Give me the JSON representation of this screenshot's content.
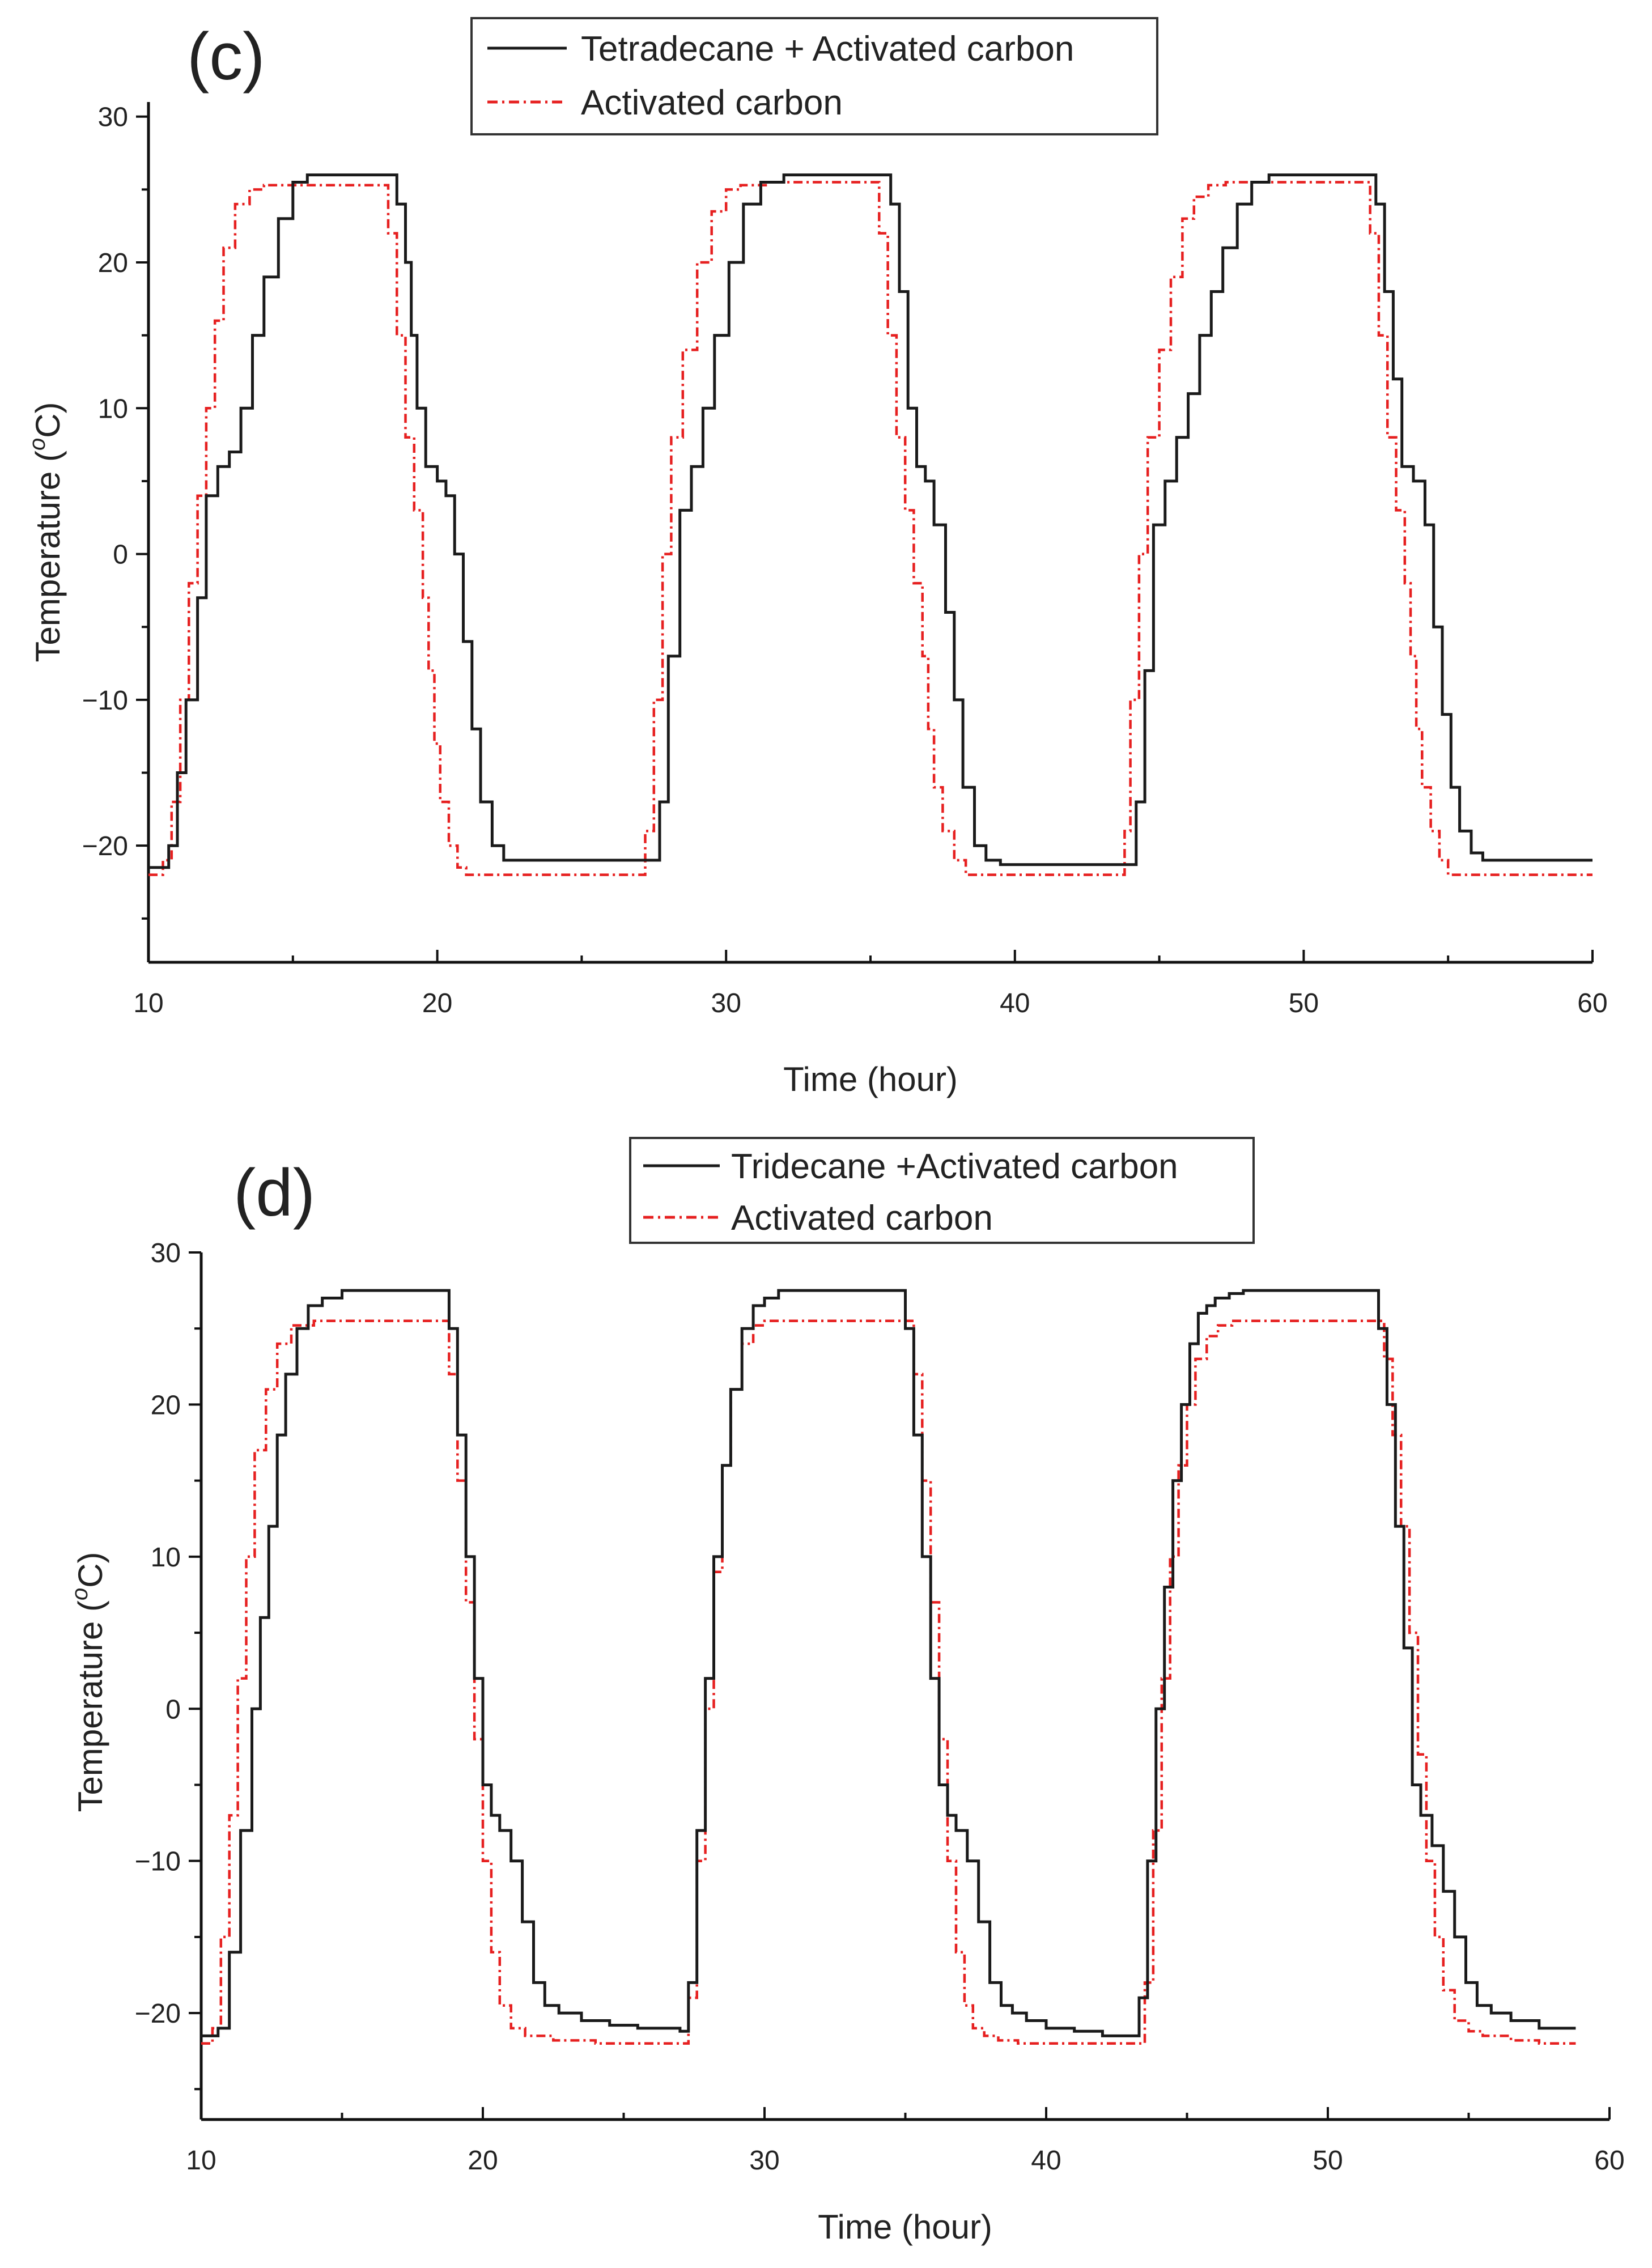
{
  "chart_data": [
    {
      "type": "line",
      "panel_label": "(c)",
      "xlabel": "Time (hour)",
      "ylabel_prefix": "Temperature (",
      "ylabel_sup": "o",
      "ylabel_suffix": "C)",
      "xlim": [
        10,
        60
      ],
      "ylim": [
        -28,
        31
      ],
      "xticks": [
        10,
        20,
        30,
        40,
        50,
        60
      ],
      "yticks": [
        -20,
        -10,
        0,
        10,
        20,
        30
      ],
      "xtick_labels": [
        "10",
        "20",
        "30",
        "40",
        "50",
        "60"
      ],
      "ytick_labels": [
        "−20",
        "−10",
        "0",
        "10",
        "20",
        "30"
      ],
      "legend": {
        "position": "top-center",
        "entries": [
          "Tetradecane + Activated carbon",
          "Activated carbon"
        ]
      },
      "series": [
        {
          "name": "Tetradecane + Activated carbon",
          "color": "#1a1a1a",
          "style": "solid",
          "x": [
            10.0,
            10.7,
            11.0,
            11.3,
            11.7,
            12.0,
            12.4,
            12.8,
            13.2,
            13.6,
            14.0,
            14.5,
            15.0,
            15.5,
            16.5,
            17.5,
            18.3,
            18.6,
            18.9,
            19.1,
            19.3,
            19.6,
            20.0,
            20.3,
            20.6,
            20.9,
            21.2,
            21.5,
            21.9,
            22.3,
            23.0,
            24.0,
            25.0,
            26.0,
            27.0,
            27.4,
            27.7,
            28.0,
            28.4,
            28.8,
            29.2,
            29.6,
            30.1,
            30.6,
            31.2,
            32.0,
            33.0,
            34.0,
            35.4,
            35.7,
            36.0,
            36.3,
            36.6,
            36.9,
            37.2,
            37.6,
            37.9,
            38.2,
            38.6,
            39.0,
            39.5,
            40.0,
            41.0,
            42.0,
            43.0,
            43.8,
            44.2,
            44.5,
            44.8,
            45.2,
            45.6,
            46.0,
            46.4,
            46.8,
            47.2,
            47.7,
            48.2,
            48.8,
            49.5,
            50.5,
            51.5,
            52.2,
            52.5,
            52.8,
            53.1,
            53.4,
            53.8,
            54.2,
            54.5,
            54.8,
            55.1,
            55.4,
            55.8,
            56.2,
            56.8,
            57.5,
            58.5,
            60.0
          ],
          "y": [
            -21.5,
            -20,
            -15,
            -10,
            -3,
            4,
            6,
            7,
            10,
            15,
            19,
            23,
            25.5,
            26,
            26,
            26,
            26,
            24,
            20,
            15,
            10,
            6,
            5,
            4,
            0,
            -6,
            -12,
            -17,
            -20,
            -21,
            -21,
            -21,
            -21,
            -21,
            -21,
            -21,
            -17,
            -7,
            3,
            6,
            10,
            15,
            20,
            24,
            25.5,
            26,
            26,
            26,
            26,
            24,
            18,
            10,
            6,
            5,
            2,
            -4,
            -10,
            -16,
            -20,
            -21,
            -21.3,
            -21.3,
            -21.3,
            -21.3,
            -21.3,
            -21.3,
            -17,
            -8,
            2,
            5,
            8,
            11,
            15,
            18,
            21,
            24,
            25.5,
            26,
            26,
            26,
            26,
            26,
            24,
            18,
            12,
            6,
            5,
            2,
            -5,
            -11,
            -16,
            -19,
            -20.5,
            -21,
            -21,
            -21,
            -21,
            -21
          ]
        },
        {
          "name": "Activated carbon",
          "color": "#e62020",
          "style": "dashdot",
          "x": [
            10.0,
            10.5,
            10.8,
            11.1,
            11.4,
            11.7,
            12.0,
            12.3,
            12.6,
            13.0,
            13.5,
            14.0,
            15.0,
            16.5,
            18.0,
            18.3,
            18.6,
            18.9,
            19.2,
            19.5,
            19.7,
            19.9,
            20.1,
            20.4,
            20.7,
            21.0,
            21.4,
            22.0,
            23.0,
            25.0,
            27.0,
            27.2,
            27.5,
            27.8,
            28.1,
            28.5,
            29.0,
            29.5,
            30.0,
            30.5,
            31.5,
            33.0,
            35.0,
            35.3,
            35.6,
            35.9,
            36.2,
            36.5,
            36.8,
            37.0,
            37.2,
            37.5,
            37.9,
            38.3,
            38.8,
            39.5,
            41.0,
            42.5,
            43.6,
            43.8,
            44.0,
            44.3,
            44.6,
            45.0,
            45.4,
            45.8,
            46.2,
            46.7,
            47.3,
            48.0,
            49.0,
            50.5,
            52.0,
            52.3,
            52.6,
            52.9,
            53.2,
            53.5,
            53.7,
            53.9,
            54.1,
            54.4,
            54.7,
            55.0,
            55.4,
            55.9,
            56.5,
            57.5,
            58.5,
            60.0
          ],
          "y": [
            -22,
            -21,
            -17,
            -10,
            -2,
            4,
            10,
            16,
            21,
            24,
            25,
            25.3,
            25.3,
            25.3,
            25.3,
            22,
            15,
            8,
            3,
            -3,
            -8,
            -13,
            -17,
            -20,
            -21.5,
            -22,
            -22,
            -22,
            -22,
            -22,
            -22,
            -19,
            -10,
            0,
            8,
            14,
            20,
            23.5,
            25,
            25.3,
            25.5,
            25.5,
            25.5,
            22,
            15,
            8,
            3,
            -2,
            -7,
            -12,
            -16,
            -19,
            -21,
            -22,
            -22,
            -22,
            -22,
            -22,
            -22,
            -19,
            -10,
            0,
            8,
            14,
            19,
            23,
            24.5,
            25.3,
            25.5,
            25.5,
            25.5,
            25.5,
            25.5,
            22,
            15,
            8,
            3,
            -2,
            -7,
            -12,
            -16,
            -19,
            -21,
            -22,
            -22,
            -22,
            -22,
            -22,
            -22,
            -22
          ]
        }
      ]
    },
    {
      "type": "line",
      "panel_label": "(d)",
      "xlabel": "Time (hour)",
      "ylabel_prefix": "Temperature (",
      "ylabel_sup": "o",
      "ylabel_suffix": "C)",
      "xlim": [
        10,
        60
      ],
      "ylim": [
        -27,
        30
      ],
      "xticks": [
        10,
        20,
        30,
        40,
        50,
        60
      ],
      "yticks": [
        -20,
        -10,
        0,
        10,
        20,
        30
      ],
      "xtick_labels": [
        "10",
        "20",
        "30",
        "40",
        "50",
        "60"
      ],
      "ytick_labels": [
        "−20",
        "−10",
        "0",
        "10",
        "20",
        "30"
      ],
      "legend": {
        "position": "top-center",
        "entries": [
          "Tridecane +Activated carbon",
          "Activated carbon"
        ]
      },
      "series": [
        {
          "name": "Tridecane +Activated carbon",
          "color": "#1a1a1a",
          "style": "solid",
          "x": [
            10.0,
            10.6,
            11.0,
            11.4,
            11.8,
            12.1,
            12.4,
            12.7,
            13.0,
            13.4,
            13.8,
            14.3,
            15.0,
            16.0,
            17.5,
            18.5,
            18.8,
            19.1,
            19.4,
            19.7,
            20.0,
            20.3,
            20.6,
            21.0,
            21.4,
            21.8,
            22.2,
            22.7,
            23.5,
            24.5,
            25.5,
            27.0,
            27.3,
            27.6,
            27.9,
            28.2,
            28.5,
            28.8,
            29.2,
            29.6,
            30.0,
            30.5,
            31.2,
            32.0,
            33.5,
            35.0,
            35.3,
            35.6,
            35.9,
            36.2,
            36.5,
            36.8,
            37.2,
            37.6,
            38.0,
            38.4,
            38.8,
            39.3,
            40.0,
            41.0,
            42.0,
            43.0,
            43.3,
            43.6,
            43.9,
            44.2,
            44.5,
            44.8,
            45.1,
            45.4,
            45.7,
            46.0,
            46.5,
            47.0,
            47.6,
            48.3,
            49.0,
            50.0,
            51.0,
            51.5,
            51.8,
            52.1,
            52.4,
            52.7,
            53.0,
            53.3,
            53.7,
            54.1,
            54.5,
            54.9,
            55.3,
            55.8,
            56.5,
            57.5,
            58.8
          ],
          "y": [
            -21.5,
            -21,
            -16,
            -8,
            0,
            6,
            12,
            18,
            22,
            25,
            26.5,
            27,
            27.5,
            27.5,
            27.5,
            27.5,
            25,
            18,
            10,
            2,
            -5,
            -7,
            -8,
            -10,
            -14,
            -18,
            -19.5,
            -20,
            -20.5,
            -20.8,
            -21,
            -21.2,
            -18,
            -8,
            2,
            10,
            16,
            21,
            25,
            26.5,
            27,
            27.5,
            27.5,
            27.5,
            27.5,
            25,
            18,
            10,
            2,
            -5,
            -7,
            -8,
            -10,
            -14,
            -18,
            -19.5,
            -20,
            -20.5,
            -21,
            -21.2,
            -21.5,
            -21.5,
            -19,
            -10,
            0,
            8,
            15,
            20,
            24,
            26,
            26.5,
            27,
            27.3,
            27.5,
            27.5,
            27.5,
            27.5,
            27.5,
            27.5,
            27.5,
            25,
            20,
            12,
            4,
            -5,
            -7,
            -9,
            -12,
            -15,
            -18,
            -19.5,
            -20,
            -20.5,
            -21,
            -21
          ]
        },
        {
          "name": "Activated carbon",
          "color": "#e62020",
          "style": "dashdot",
          "x": [
            10.0,
            10.4,
            10.7,
            11.0,
            11.3,
            11.6,
            11.9,
            12.3,
            12.7,
            13.2,
            14.0,
            16.0,
            18.5,
            18.8,
            19.1,
            19.4,
            19.7,
            20.0,
            20.3,
            20.6,
            21.0,
            21.5,
            22.5,
            24.0,
            26.0,
            27.0,
            27.3,
            27.6,
            27.9,
            28.2,
            28.5,
            28.8,
            29.2,
            29.6,
            30.0,
            31.0,
            33.0,
            35.0,
            35.3,
            35.6,
            35.9,
            36.2,
            36.5,
            36.8,
            37.1,
            37.4,
            37.8,
            38.3,
            39.0,
            40.0,
            42.0,
            43.2,
            43.5,
            43.8,
            44.1,
            44.4,
            44.7,
            45.0,
            45.3,
            45.7,
            46.1,
            46.6,
            47.2,
            48.0,
            49.5,
            51.5,
            52.0,
            52.3,
            52.6,
            52.9,
            53.2,
            53.5,
            53.8,
            54.1,
            54.5,
            55.0,
            55.5,
            56.5,
            57.5,
            58.8
          ],
          "y": [
            -22,
            -21,
            -15,
            -7,
            2,
            10,
            17,
            21,
            24,
            25.2,
            25.5,
            25.5,
            25.5,
            22,
            15,
            7,
            -2,
            -10,
            -16,
            -19.5,
            -21,
            -21.5,
            -21.8,
            -22,
            -22,
            -22,
            -19,
            -10,
            0,
            9,
            16,
            21,
            24,
            25.2,
            25.5,
            25.5,
            25.5,
            25.5,
            22,
            15,
            7,
            -2,
            -10,
            -16,
            -19.5,
            -21,
            -21.5,
            -21.8,
            -22,
            -22,
            -22,
            -22,
            -18,
            -8,
            2,
            10,
            16,
            20,
            23,
            24.5,
            25.2,
            25.5,
            25.5,
            25.5,
            25.5,
            25.5,
            23,
            18,
            12,
            5,
            -3,
            -10,
            -15,
            -18.5,
            -20.5,
            -21.2,
            -21.5,
            -21.8,
            -22,
            -22
          ]
        }
      ]
    }
  ]
}
